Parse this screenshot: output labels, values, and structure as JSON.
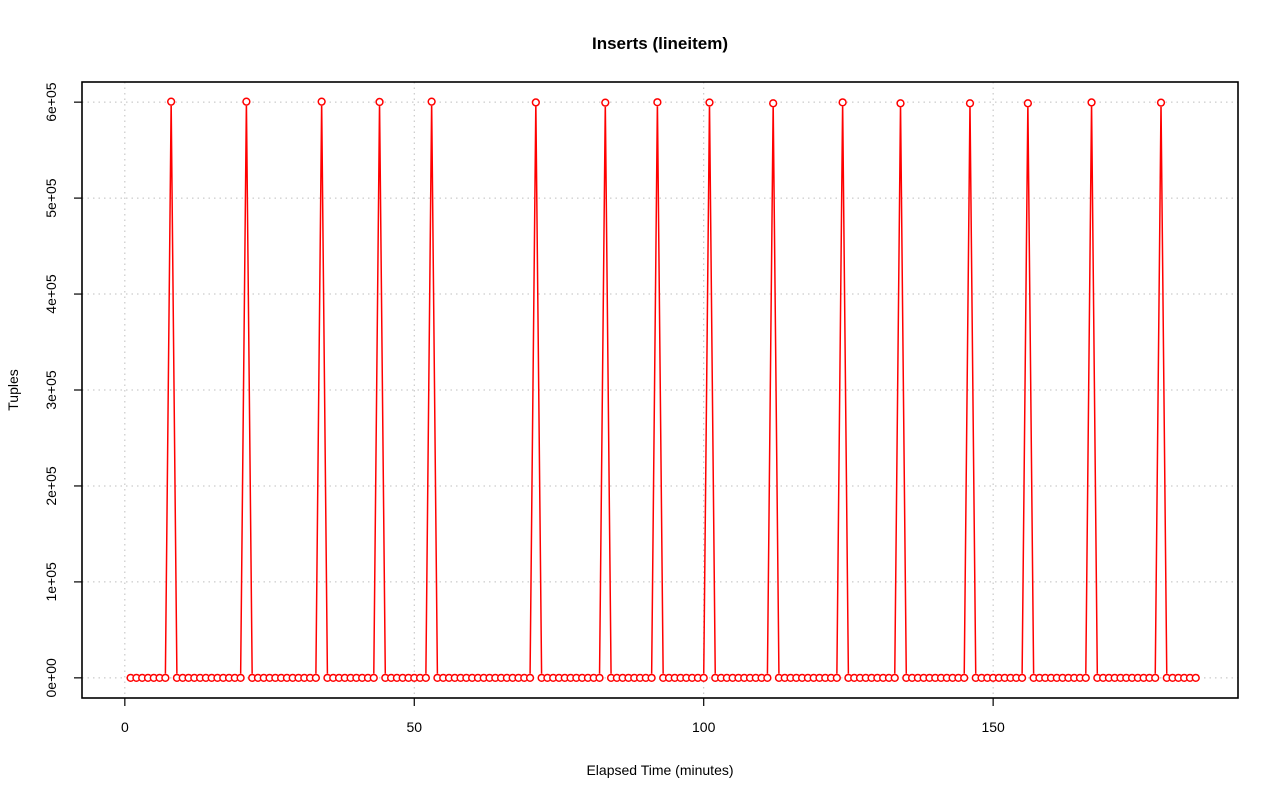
{
  "chart_data": {
    "type": "line",
    "title": "Inserts (lineitem)",
    "xlabel": "Elapsed Time (minutes)",
    "ylabel": "Tuples",
    "xlim": [
      -7.4,
      192.3
    ],
    "ylim": [
      -21000,
      621000
    ],
    "xticks": [
      0,
      50,
      100,
      150
    ],
    "xtick_labels": [
      "0",
      "50",
      "100",
      "150"
    ],
    "yticks": [
      0,
      100000,
      200000,
      300000,
      400000,
      500000,
      600000
    ],
    "ytick_labels": [
      "0e+00",
      "1e+05",
      "2e+05",
      "3e+05",
      "4e+05",
      "5e+05",
      "6e+05"
    ],
    "grid": true,
    "marker": "circle-open",
    "color": "#ff0000",
    "x_start": 1,
    "x_end": 185,
    "spikes": [
      {
        "x": 8,
        "y": 600500
      },
      {
        "x": 21,
        "y": 600500
      },
      {
        "x": 34,
        "y": 600500
      },
      {
        "x": 44,
        "y": 600200
      },
      {
        "x": 53,
        "y": 600500
      },
      {
        "x": 71,
        "y": 599700
      },
      {
        "x": 83,
        "y": 599500
      },
      {
        "x": 92,
        "y": 599900
      },
      {
        "x": 101,
        "y": 599600
      },
      {
        "x": 112,
        "y": 598800
      },
      {
        "x": 124,
        "y": 599800
      },
      {
        "x": 134,
        "y": 598800
      },
      {
        "x": 146,
        "y": 598800
      },
      {
        "x": 156,
        "y": 598800
      },
      {
        "x": 167,
        "y": 599700
      },
      {
        "x": 179,
        "y": 599500
      }
    ],
    "baseline_value": 0
  }
}
